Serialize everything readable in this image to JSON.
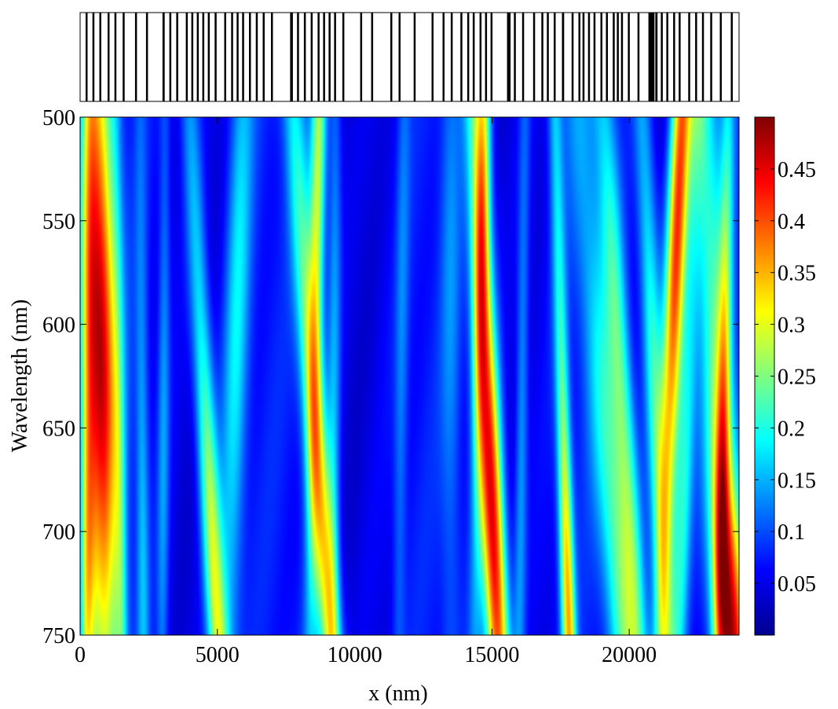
{
  "chart_data": {
    "type": "heatmap",
    "title": "",
    "xlabel": "x (nm)",
    "ylabel": "Wavelength (nm)",
    "xlim": [
      0,
      24000
    ],
    "ylim": [
      500,
      750
    ],
    "y_direction": "reversed",
    "x_ticks": [
      0,
      5000,
      10000,
      15000,
      20000
    ],
    "x_tick_labels": [
      "0",
      "5000",
      "10000",
      "15000",
      "20000"
    ],
    "y_ticks": [
      500,
      550,
      600,
      650,
      700,
      750
    ],
    "y_tick_labels": [
      "500",
      "550",
      "600",
      "650",
      "700",
      "750"
    ],
    "colormap": "jet",
    "color_range": [
      0,
      0.5
    ],
    "colorbar_ticks": [
      0.05,
      0.1,
      0.15,
      0.2,
      0.25,
      0.3,
      0.35,
      0.4,
      0.45
    ],
    "colorbar_tick_labels": [
      "0.05",
      "0.1",
      "0.15",
      "0.2",
      "0.25",
      "0.3",
      "0.35",
      "0.4",
      "0.45"
    ],
    "background_value": 0.06,
    "features": [
      {
        "x_start": 600,
        "x_end": 900,
        "peak": 0.47,
        "width": 430,
        "peak_wavelength": 610,
        "spread": 85
      },
      {
        "x_start": 350,
        "x_end": 250,
        "peak": 0.25,
        "width": 180,
        "peak_wavelength": 720,
        "spread": 60
      },
      {
        "x_start": 1300,
        "x_end": 1500,
        "peak": 0.16,
        "width": 160,
        "peak_wavelength": 740,
        "spread": 80
      },
      {
        "x_start": 2200,
        "x_end": 2300,
        "peak": 0.15,
        "width": 160,
        "peak_wavelength": 700,
        "spread": 90
      },
      {
        "x_start": 3100,
        "x_end": 3000,
        "peak": 0.14,
        "width": 150,
        "peak_wavelength": 650,
        "spread": 110
      },
      {
        "x_start": 4000,
        "x_end": 5000,
        "peak": 0.29,
        "width": 260,
        "peak_wavelength": 720,
        "spread": 90
      },
      {
        "x_start": 5900,
        "x_end": 5400,
        "peak": 0.18,
        "width": 320,
        "peak_wavelength": 610,
        "spread": 110
      },
      {
        "x_start": 7800,
        "x_end": 9100,
        "peak": 0.32,
        "width": 300,
        "peak_wavelength": 700,
        "spread": 100
      },
      {
        "x_start": 8700,
        "x_end": 8400,
        "peak": 0.28,
        "width": 200,
        "peak_wavelength": 530,
        "spread": 70
      },
      {
        "x_start": 9300,
        "x_end": 9200,
        "peak": 0.15,
        "width": 170,
        "peak_wavelength": 620,
        "spread": 120
      },
      {
        "x_start": 11800,
        "x_end": 11600,
        "peak": 0.12,
        "width": 170,
        "peak_wavelength": 620,
        "spread": 120
      },
      {
        "x_start": 13500,
        "x_end": 13500,
        "peak": 0.12,
        "width": 260,
        "peak_wavelength": 580,
        "spread": 110
      },
      {
        "x_start": 14400,
        "x_end": 15200,
        "peak": 0.46,
        "width": 300,
        "peak_wavelength": 700,
        "spread": 90
      },
      {
        "x_start": 14700,
        "x_end": 14400,
        "peak": 0.25,
        "width": 200,
        "peak_wavelength": 540,
        "spread": 70
      },
      {
        "x_start": 16200,
        "x_end": 16000,
        "peak": 0.15,
        "width": 160,
        "peak_wavelength": 660,
        "spread": 110
      },
      {
        "x_start": 17300,
        "x_end": 17800,
        "peak": 0.34,
        "width": 180,
        "peak_wavelength": 740,
        "spread": 80
      },
      {
        "x_start": 18200,
        "x_end": 19800,
        "peak": 0.22,
        "width": 420,
        "peak_wavelength": 730,
        "spread": 100
      },
      {
        "x_start": 19100,
        "x_end": 20300,
        "peak": 0.22,
        "width": 300,
        "peak_wavelength": 650,
        "spread": 110
      },
      {
        "x_start": 20500,
        "x_end": 21300,
        "peak": 0.22,
        "width": 260,
        "peak_wavelength": 640,
        "spread": 100
      },
      {
        "x_start": 21900,
        "x_end": 21200,
        "peak": 0.42,
        "width": 260,
        "peak_wavelength": 560,
        "spread": 90
      },
      {
        "x_start": 22500,
        "x_end": 21800,
        "peak": 0.2,
        "width": 230,
        "peak_wavelength": 690,
        "spread": 80
      },
      {
        "x_start": 22700,
        "x_end": 23700,
        "peak": 0.46,
        "width": 420,
        "peak_wavelength": 745,
        "spread": 60
      },
      {
        "x_start": 23600,
        "x_end": 23300,
        "peak": 0.24,
        "width": 180,
        "peak_wavelength": 640,
        "spread": 80
      }
    ],
    "structure_bars": [
      {
        "x": 200,
        "w": 70
      },
      {
        "x": 450,
        "w": 60
      },
      {
        "x": 700,
        "w": 60
      },
      {
        "x": 1000,
        "w": 60
      },
      {
        "x": 1250,
        "w": 60
      },
      {
        "x": 1550,
        "w": 60
      },
      {
        "x": 2000,
        "w": 60
      },
      {
        "x": 2400,
        "w": 60
      },
      {
        "x": 3000,
        "w": 80
      },
      {
        "x": 3250,
        "w": 60
      },
      {
        "x": 3500,
        "w": 60
      },
      {
        "x": 3850,
        "w": 60
      },
      {
        "x": 4050,
        "w": 60
      },
      {
        "x": 4250,
        "w": 60
      },
      {
        "x": 4450,
        "w": 60
      },
      {
        "x": 4650,
        "w": 60
      },
      {
        "x": 4900,
        "w": 60
      },
      {
        "x": 5250,
        "w": 60
      },
      {
        "x": 5500,
        "w": 60
      },
      {
        "x": 5700,
        "w": 60
      },
      {
        "x": 5900,
        "w": 60
      },
      {
        "x": 6150,
        "w": 60
      },
      {
        "x": 6400,
        "w": 60
      },
      {
        "x": 6650,
        "w": 60
      },
      {
        "x": 6950,
        "w": 60
      },
      {
        "x": 7650,
        "w": 100
      },
      {
        "x": 7900,
        "w": 60
      },
      {
        "x": 8150,
        "w": 60
      },
      {
        "x": 8400,
        "w": 60
      },
      {
        "x": 8650,
        "w": 60
      },
      {
        "x": 8850,
        "w": 60
      },
      {
        "x": 9050,
        "w": 60
      },
      {
        "x": 9250,
        "w": 60
      },
      {
        "x": 9550,
        "w": 60
      },
      {
        "x": 10200,
        "w": 60
      },
      {
        "x": 10600,
        "w": 60
      },
      {
        "x": 11300,
        "w": 60
      },
      {
        "x": 11600,
        "w": 60
      },
      {
        "x": 12150,
        "w": 60
      },
      {
        "x": 12800,
        "w": 60
      },
      {
        "x": 13200,
        "w": 60
      },
      {
        "x": 13500,
        "w": 60
      },
      {
        "x": 13850,
        "w": 60
      },
      {
        "x": 14100,
        "w": 60
      },
      {
        "x": 14300,
        "w": 60
      },
      {
        "x": 14550,
        "w": 60
      },
      {
        "x": 14750,
        "w": 60
      },
      {
        "x": 14950,
        "w": 60
      },
      {
        "x": 15550,
        "w": 130
      },
      {
        "x": 15800,
        "w": 60
      },
      {
        "x": 16100,
        "w": 60
      },
      {
        "x": 16500,
        "w": 60
      },
      {
        "x": 16800,
        "w": 60
      },
      {
        "x": 17000,
        "w": 60
      },
      {
        "x": 17250,
        "w": 60
      },
      {
        "x": 17550,
        "w": 80
      },
      {
        "x": 17900,
        "w": 60
      },
      {
        "x": 18150,
        "w": 60
      },
      {
        "x": 18300,
        "w": 60
      },
      {
        "x": 18500,
        "w": 60
      },
      {
        "x": 18700,
        "w": 60
      },
      {
        "x": 18950,
        "w": 60
      },
      {
        "x": 19150,
        "w": 60
      },
      {
        "x": 19400,
        "w": 60
      },
      {
        "x": 19550,
        "w": 60
      },
      {
        "x": 19700,
        "w": 60
      },
      {
        "x": 19950,
        "w": 60
      },
      {
        "x": 20300,
        "w": 60
      },
      {
        "x": 20700,
        "w": 220
      },
      {
        "x": 20950,
        "w": 80
      },
      {
        "x": 21150,
        "w": 60
      },
      {
        "x": 21350,
        "w": 60
      },
      {
        "x": 21600,
        "w": 60
      },
      {
        "x": 21800,
        "w": 60
      },
      {
        "x": 22150,
        "w": 60
      },
      {
        "x": 22400,
        "w": 60
      },
      {
        "x": 22650,
        "w": 60
      },
      {
        "x": 22950,
        "w": 60
      },
      {
        "x": 23300,
        "w": 60
      },
      {
        "x": 23700,
        "w": 60
      }
    ]
  }
}
